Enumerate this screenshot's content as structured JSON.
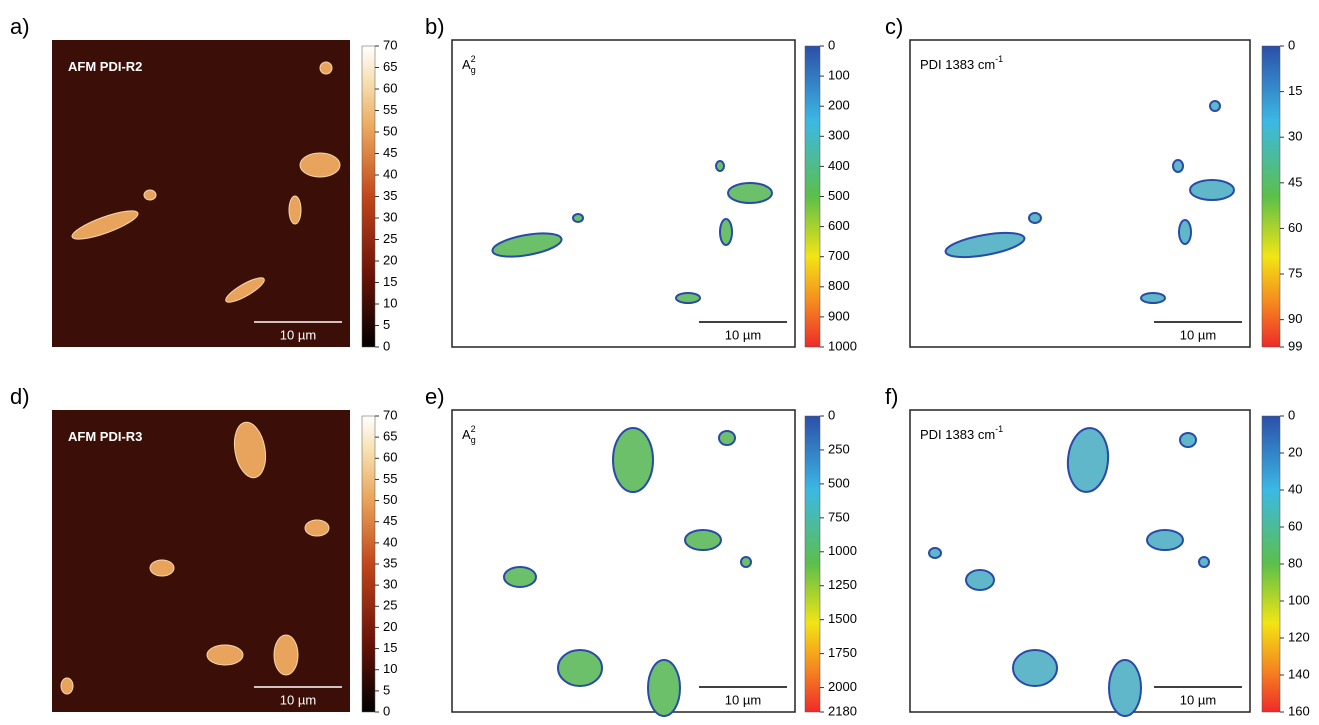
{
  "panels": [
    {
      "label": "a)",
      "title": {
        "base": "AFM PDI-R2"
      },
      "scale_bar": "10 µm",
      "colorbar": {
        "ticks": [
          70,
          65,
          60,
          55,
          50,
          45,
          40,
          35,
          30,
          25,
          20,
          15,
          10,
          5,
          0
        ]
      }
    },
    {
      "label": "b)",
      "title": {
        "base": "A",
        "sup": "2",
        "sub": "g"
      },
      "scale_bar": "10 µm",
      "colorbar": {
        "ticks": [
          0,
          100,
          200,
          300,
          400,
          500,
          600,
          700,
          800,
          900,
          1000
        ]
      }
    },
    {
      "label": "c)",
      "title": {
        "base": "PDI 1383 cm",
        "sup": "-1"
      },
      "scale_bar": "10 µm",
      "colorbar": {
        "ticks": [
          0,
          15,
          30,
          45,
          60,
          75,
          90,
          99
        ]
      }
    },
    {
      "label": "d)",
      "title": {
        "base": "AFM PDI-R3"
      },
      "scale_bar": "10 µm",
      "colorbar": {
        "ticks": [
          70,
          65,
          60,
          55,
          50,
          45,
          40,
          35,
          30,
          25,
          20,
          15,
          10,
          5,
          0
        ]
      }
    },
    {
      "label": "e)",
      "title": {
        "base": "A",
        "sup": "2",
        "sub": "g"
      },
      "scale_bar": "10 µm",
      "colorbar": {
        "ticks": [
          0,
          250,
          500,
          750,
          1000,
          1250,
          1500,
          1750,
          2000,
          2180
        ]
      }
    },
    {
      "label": "f)",
      "title": {
        "base": "PDI 1383 cm",
        "sup": "-1"
      },
      "scale_bar": "10 µm",
      "colorbar": {
        "ticks": [
          0,
          20,
          40,
          60,
          80,
          100,
          120,
          140,
          160
        ]
      }
    }
  ]
}
